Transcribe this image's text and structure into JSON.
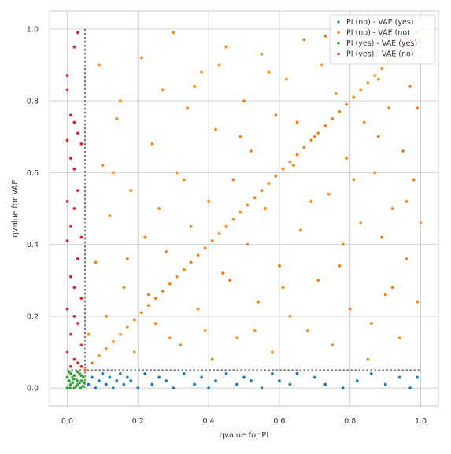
{
  "chart_data": {
    "type": "scatter",
    "xlabel": "qvalue for PI",
    "ylabel": "qvalue for VAE",
    "xlim": [
      -0.05,
      1.05
    ],
    "ylim": [
      -0.05,
      1.05
    ],
    "xticks": [
      "0.0",
      "0.2",
      "0.4",
      "0.6",
      "0.8",
      "1.0"
    ],
    "yticks": [
      "0.0",
      "0.2",
      "0.4",
      "0.6",
      "0.8",
      "1.0"
    ],
    "grid": true,
    "legend_position": "top-right",
    "threshold": 0.05,
    "series": [
      {
        "name": "PI (no)  - VAE (yes)",
        "color": "#1f77b4",
        "points": [
          [
            0.06,
            0.01
          ],
          [
            0.07,
            0.03
          ],
          [
            0.08,
            0.0
          ],
          [
            0.09,
            0.02
          ],
          [
            0.1,
            0.04
          ],
          [
            0.11,
            0.01
          ],
          [
            0.12,
            0.03
          ],
          [
            0.13,
            0.0
          ],
          [
            0.14,
            0.02
          ],
          [
            0.15,
            0.04
          ],
          [
            0.16,
            0.01
          ],
          [
            0.17,
            0.03
          ],
          [
            0.18,
            0.02
          ],
          [
            0.2,
            0.0
          ],
          [
            0.22,
            0.04
          ],
          [
            0.24,
            0.01
          ],
          [
            0.26,
            0.03
          ],
          [
            0.28,
            0.02
          ],
          [
            0.3,
            0.0
          ],
          [
            0.33,
            0.04
          ],
          [
            0.36,
            0.01
          ],
          [
            0.38,
            0.03
          ],
          [
            0.4,
            0.0
          ],
          [
            0.42,
            0.02
          ],
          [
            0.45,
            0.04
          ],
          [
            0.48,
            0.01
          ],
          [
            0.5,
            0.03
          ],
          [
            0.52,
            0.02
          ],
          [
            0.55,
            0.0
          ],
          [
            0.58,
            0.04
          ],
          [
            0.6,
            0.02
          ],
          [
            0.63,
            0.01
          ],
          [
            0.65,
            0.04
          ],
          [
            0.7,
            0.03
          ],
          [
            0.73,
            0.01
          ],
          [
            0.78,
            0.0
          ],
          [
            0.82,
            0.02
          ],
          [
            0.86,
            0.04
          ],
          [
            0.9,
            0.01
          ],
          [
            0.94,
            0.03
          ],
          [
            0.97,
            0.0
          ],
          [
            0.99,
            0.03
          ]
        ]
      },
      {
        "name": "PI (no)  - VAE (no)",
        "color": "#ff7f0e",
        "points": [
          [
            0.05,
            0.05
          ],
          [
            0.07,
            0.07
          ],
          [
            0.09,
            0.09
          ],
          [
            0.11,
            0.11
          ],
          [
            0.13,
            0.13
          ],
          [
            0.15,
            0.15
          ],
          [
            0.17,
            0.17
          ],
          [
            0.19,
            0.19
          ],
          [
            0.21,
            0.21
          ],
          [
            0.23,
            0.23
          ],
          [
            0.25,
            0.25
          ],
          [
            0.27,
            0.27
          ],
          [
            0.29,
            0.29
          ],
          [
            0.31,
            0.31
          ],
          [
            0.33,
            0.33
          ],
          [
            0.35,
            0.35
          ],
          [
            0.37,
            0.37
          ],
          [
            0.39,
            0.39
          ],
          [
            0.41,
            0.41
          ],
          [
            0.43,
            0.43
          ],
          [
            0.45,
            0.45
          ],
          [
            0.47,
            0.47
          ],
          [
            0.49,
            0.49
          ],
          [
            0.51,
            0.51
          ],
          [
            0.53,
            0.53
          ],
          [
            0.55,
            0.55
          ],
          [
            0.57,
            0.57
          ],
          [
            0.59,
            0.59
          ],
          [
            0.61,
            0.61
          ],
          [
            0.63,
            0.63
          ],
          [
            0.65,
            0.65
          ],
          [
            0.67,
            0.67
          ],
          [
            0.69,
            0.69
          ],
          [
            0.71,
            0.71
          ],
          [
            0.73,
            0.73
          ],
          [
            0.75,
            0.75
          ],
          [
            0.77,
            0.77
          ],
          [
            0.79,
            0.79
          ],
          [
            0.81,
            0.81
          ],
          [
            0.83,
            0.83
          ],
          [
            0.85,
            0.85
          ],
          [
            0.87,
            0.87
          ],
          [
            0.89,
            0.89
          ],
          [
            0.91,
            0.91
          ],
          [
            0.93,
            0.93
          ],
          [
            0.95,
            0.95
          ],
          [
            0.97,
            0.97
          ],
          [
            0.99,
            0.99
          ],
          [
            0.06,
            0.15
          ],
          [
            0.08,
            0.35
          ],
          [
            0.09,
            0.9
          ],
          [
            0.1,
            0.62
          ],
          [
            0.12,
            0.48
          ],
          [
            0.14,
            0.75
          ],
          [
            0.16,
            0.28
          ],
          [
            0.18,
            0.55
          ],
          [
            0.19,
            0.1
          ],
          [
            0.21,
            0.92
          ],
          [
            0.22,
            0.42
          ],
          [
            0.24,
            0.68
          ],
          [
            0.25,
            0.18
          ],
          [
            0.27,
            0.83
          ],
          [
            0.28,
            0.38
          ],
          [
            0.3,
            0.99
          ],
          [
            0.31,
            0.6
          ],
          [
            0.32,
            0.12
          ],
          [
            0.34,
            0.78
          ],
          [
            0.35,
            0.45
          ],
          [
            0.37,
            0.22
          ],
          [
            0.38,
            0.88
          ],
          [
            0.4,
            0.52
          ],
          [
            0.41,
            0.08
          ],
          [
            0.42,
            0.72
          ],
          [
            0.44,
            0.32
          ],
          [
            0.45,
            0.95
          ],
          [
            0.47,
            0.58
          ],
          [
            0.48,
            0.14
          ],
          [
            0.5,
            0.8
          ],
          [
            0.51,
            0.4
          ],
          [
            0.52,
            0.66
          ],
          [
            0.54,
            0.24
          ],
          [
            0.55,
            0.93
          ],
          [
            0.56,
            0.5
          ],
          [
            0.58,
            0.1
          ],
          [
            0.59,
            0.76
          ],
          [
            0.6,
            0.34
          ],
          [
            0.62,
            0.86
          ],
          [
            0.63,
            0.2
          ],
          [
            0.64,
            0.62
          ],
          [
            0.66,
            0.44
          ],
          [
            0.67,
            0.97
          ],
          [
            0.68,
            0.16
          ],
          [
            0.7,
            0.7
          ],
          [
            0.71,
            0.3
          ],
          [
            0.72,
            0.9
          ],
          [
            0.74,
            0.54
          ],
          [
            0.75,
            0.12
          ],
          [
            0.76,
            0.82
          ],
          [
            0.78,
            0.4
          ],
          [
            0.79,
            0.64
          ],
          [
            0.8,
            0.22
          ],
          [
            0.82,
            0.96
          ],
          [
            0.83,
            0.46
          ],
          [
            0.84,
            0.74
          ],
          [
            0.86,
            0.18
          ],
          [
            0.87,
            0.6
          ],
          [
            0.88,
            0.86
          ],
          [
            0.89,
            0.42
          ],
          [
            0.9,
            0.26
          ],
          [
            0.91,
            0.78
          ],
          [
            0.92,
            0.5
          ],
          [
            0.93,
            0.92
          ],
          [
            0.94,
            0.14
          ],
          [
            0.95,
            0.66
          ],
          [
            0.96,
            0.36
          ],
          [
            0.97,
            0.84
          ],
          [
            0.98,
            0.58
          ],
          [
            0.99,
            0.24
          ],
          [
            1.0,
            0.46
          ],
          [
            0.11,
            0.2
          ],
          [
            0.13,
            0.6
          ],
          [
            0.15,
            0.8
          ],
          [
            0.17,
            0.36
          ],
          [
            0.23,
            0.26
          ],
          [
            0.26,
            0.5
          ],
          [
            0.29,
            0.14
          ],
          [
            0.33,
            0.58
          ],
          [
            0.36,
            0.84
          ],
          [
            0.39,
            0.16
          ],
          [
            0.43,
            0.9
          ],
          [
            0.46,
            0.3
          ],
          [
            0.49,
            0.7
          ],
          [
            0.53,
            0.16
          ],
          [
            0.57,
            0.88
          ],
          [
            0.61,
            0.28
          ],
          [
            0.65,
            0.74
          ],
          [
            0.69,
            0.52
          ],
          [
            0.73,
            0.98
          ],
          [
            0.77,
            0.34
          ],
          [
            0.81,
            0.58
          ],
          [
            0.85,
            0.08
          ],
          [
            0.88,
            0.7
          ],
          [
            0.92,
            0.28
          ],
          [
            0.96,
            0.52
          ],
          [
            0.99,
            0.78
          ]
        ]
      },
      {
        "name": "PI (yes) - VAE (yes)",
        "color": "#2ca02c",
        "points": [
          [
            0.0,
            0.0
          ],
          [
            0.005,
            0.02
          ],
          [
            0.01,
            0.01
          ],
          [
            0.015,
            0.03
          ],
          [
            0.02,
            0.0
          ],
          [
            0.025,
            0.025
          ],
          [
            0.03,
            0.01
          ],
          [
            0.035,
            0.04
          ],
          [
            0.04,
            0.02
          ],
          [
            0.045,
            0.005
          ],
          [
            0.01,
            0.04
          ],
          [
            0.02,
            0.035
          ],
          [
            0.03,
            0.045
          ],
          [
            0.04,
            0.035
          ],
          [
            0.0,
            0.03
          ],
          [
            0.005,
            0.045
          ],
          [
            0.015,
            0.015
          ],
          [
            0.025,
            0.005
          ],
          [
            0.035,
            0.015
          ],
          [
            0.045,
            0.03
          ],
          [
            0.008,
            0.0
          ],
          [
            0.018,
            0.025
          ],
          [
            0.028,
            0.02
          ],
          [
            0.038,
            0.0
          ],
          [
            0.048,
            0.015
          ]
        ]
      },
      {
        "name": "PI (yes) - VAE (no)",
        "color": "#d62728",
        "points": [
          [
            0.0,
            0.87
          ],
          [
            0.0,
            0.83
          ],
          [
            0.01,
            0.76
          ],
          [
            0.02,
            0.74
          ],
          [
            0.0,
            0.69
          ],
          [
            0.03,
            0.71
          ],
          [
            0.01,
            0.64
          ],
          [
            0.04,
            0.68
          ],
          [
            0.02,
            0.61
          ],
          [
            0.03,
            0.55
          ],
          [
            0.0,
            0.52
          ],
          [
            0.02,
            0.5
          ],
          [
            0.01,
            0.45
          ],
          [
            0.04,
            0.42
          ],
          [
            0.0,
            0.41
          ],
          [
            0.03,
            0.36
          ],
          [
            0.01,
            0.31
          ],
          [
            0.02,
            0.28
          ],
          [
            0.04,
            0.25
          ],
          [
            0.0,
            0.22
          ],
          [
            0.02,
            0.2
          ],
          [
            0.03,
            0.18
          ],
          [
            0.01,
            0.15
          ],
          [
            0.04,
            0.12
          ],
          [
            0.0,
            0.1
          ],
          [
            0.02,
            0.08
          ],
          [
            0.03,
            0.07
          ],
          [
            0.01,
            0.06
          ],
          [
            0.04,
            0.06
          ],
          [
            0.02,
            0.95
          ],
          [
            0.03,
            0.99
          ]
        ]
      }
    ]
  }
}
